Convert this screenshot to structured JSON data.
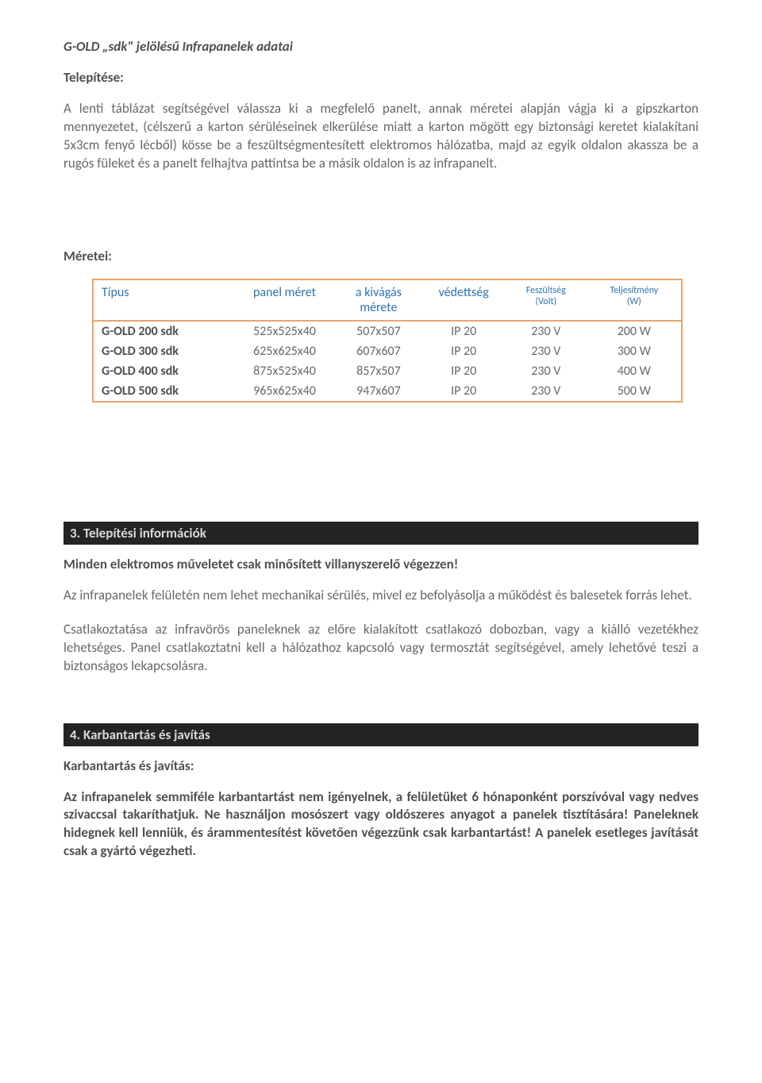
{
  "header": {
    "title": "G-OLD „sdk\" jelölésű Infrapanelek adatai",
    "install_label": "Telepítése:",
    "install_text": "A lenti táblázat segítségével válassza ki a megfelelő panelt, annak méretei alapján vágja ki a gipszkarton mennyezetet, (célszerű a karton sérüléseinek elkerülése miatt a karton mögött egy biztonsági keretet kialakítani 5x3cm fenyő lécből) kösse be a feszültségmentesített elektromos hálózatba, majd az egyik oldalon akassza be a rugós füleket és a panelt felhajtva pattintsa be a másik oldalon is az infrapanelt."
  },
  "sizes": {
    "label": "Méretei:",
    "columns": {
      "c1": "Típus",
      "c2": "panel méret",
      "c3": "a kivágás",
      "c3b": "mérete",
      "c4": "védettség",
      "c5": "Feszültség",
      "c5b": "(Volt)",
      "c6": "Teljesítmény",
      "c6b": "(W)"
    },
    "rows": [
      {
        "c1": "G-OLD  200 sdk",
        "c2": "525x525x40",
        "c3": "507x507",
        "c4": "IP 20",
        "c5": "230 V",
        "c6": "200 W"
      },
      {
        "c1": "G-OLD  300 sdk",
        "c2": "625x625x40",
        "c3": "607x607",
        "c4": "IP 20",
        "c5": "230 V",
        "c6": "300 W"
      },
      {
        "c1": "G-OLD  400 sdk",
        "c2": "875x525x40",
        "c3": "857x507",
        "c4": "IP 20",
        "c5": "230 V",
        "c6": "400 W"
      },
      {
        "c1": "G-OLD  500 sdk",
        "c2": "965x625x40",
        "c3": "947x607",
        "c4": "IP 20",
        "c5": "230 V",
        "c6": "500 W"
      }
    ]
  },
  "section3": {
    "band": "3. Telepítési információk",
    "line1": "Minden elektromos műveletet csak minősített villanyszerelő végezzen!",
    "p1": "Az infrapanelek felületén nem lehet mechanikai sérülés, mivel ez befolyásolja a működést és balesetek forrás lehet.",
    "p2": "Csatlakoztatása az infravörös paneleknek az előre kialakított csatlakozó dobozban, vagy a kiálló vezetékhez lehetséges.   Panel csatlakoztatni kell a hálózathoz kapcsoló vagy termosztát segítségével, amely lehetővé teszi a biztonságos lekapcsolásra."
  },
  "section4": {
    "band": "4. Karbantartás és javítás",
    "sub": "Karbantartás és javítás:",
    "p": "Az infrapanelek semmiféle karbantartást nem igényelnek, a felületüket 6 hónaponként porszívóval vagy nedves szivaccsal takaríthatjuk. Ne használjon mosószert vagy oldószeres anyagot a panelek tisztítására! Paneleknek hidegnek kell lenniük, és árammentesítést követően végezzünk csak karbantartást! A panelek esetleges javítását csak a gyártó végezheti."
  },
  "style": {
    "accent": "#e8a56a",
    "header_color": "#2e74b5",
    "band_bg": "#242424",
    "band_fg": "#d9d9d9",
    "text_gray": "#686868",
    "text_dark": "#505050"
  }
}
